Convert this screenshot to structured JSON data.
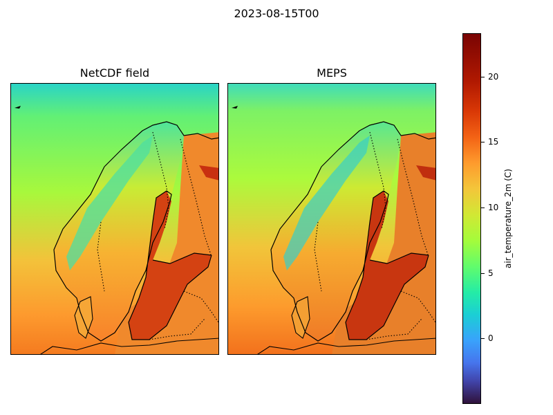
{
  "suptitle": "2023-08-15T00",
  "panels": [
    {
      "title": "NetCDF field"
    },
    {
      "title": "MEPS"
    }
  ],
  "colorbar": {
    "label": "air_temperature_2m (C)",
    "colormap": "turbo",
    "range": [
      -5,
      23.3
    ],
    "ticks": [
      {
        "value": 0,
        "label": "0"
      },
      {
        "value": 5,
        "label": "5"
      },
      {
        "value": 10,
        "label": "10"
      },
      {
        "value": 15,
        "label": "15"
      },
      {
        "value": 20,
        "label": "20"
      }
    ]
  }
}
